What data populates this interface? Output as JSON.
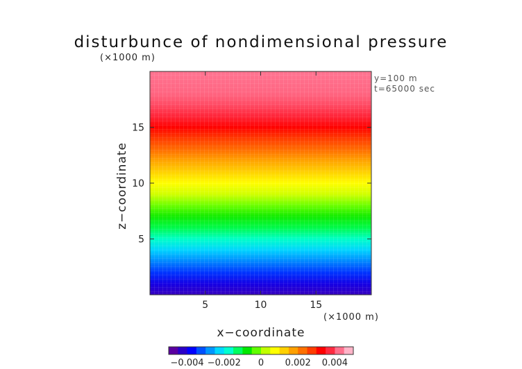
{
  "chart_data": {
    "type": "heatmap",
    "title": "disturbunce of nondimensional pressure",
    "xlabel": "x−coordinate",
    "ylabel": "z−coordinate",
    "x_unit": "(×1000 m)",
    "y_unit": "(×1000 m)",
    "annotations": [
      "y=100 m",
      "t=65000 sec"
    ],
    "xlim": [
      0,
      20
    ],
    "ylim": [
      0,
      20
    ],
    "xticks": [
      5,
      10,
      15
    ],
    "yticks": [
      5,
      10,
      15
    ],
    "grid": false,
    "colorbar": {
      "min": -0.005,
      "max": 0.005,
      "ticks": [
        {
          "value": -0.004,
          "label": "−0.004"
        },
        {
          "value": -0.002,
          "label": "−0.002"
        },
        {
          "value": 0,
          "label": "0"
        },
        {
          "value": 0.002,
          "label": "0.002"
        },
        {
          "value": 0.004,
          "label": "0.004"
        }
      ],
      "colors": [
        "#5a00a0",
        "#2a00c8",
        "#0000ff",
        "#0050ff",
        "#0096ff",
        "#00d8ff",
        "#00ffd0",
        "#00ff60",
        "#00e800",
        "#60ff00",
        "#c0ff00",
        "#ffff00",
        "#ffd000",
        "#ffa000",
        "#ff7000",
        "#ff3c00",
        "#ff0000",
        "#ff2a40",
        "#ff6f8c",
        "#ffb4c8"
      ]
    },
    "profile": {
      "z": [
        0,
        1,
        2,
        3,
        4,
        5,
        6,
        7,
        8,
        9,
        10,
        11,
        12,
        13,
        14,
        15,
        16,
        17,
        18,
        19.7
      ],
      "values": [
        -0.0046,
        -0.0042,
        -0.0036,
        -0.003,
        -0.0024,
        -0.0018,
        -0.0012,
        -0.0007,
        -0.0002,
        0.0004,
        0.0008,
        0.0013,
        0.0018,
        0.0024,
        0.0029,
        0.0034,
        0.0039,
        0.0042,
        0.0044,
        0.0045
      ]
    }
  }
}
